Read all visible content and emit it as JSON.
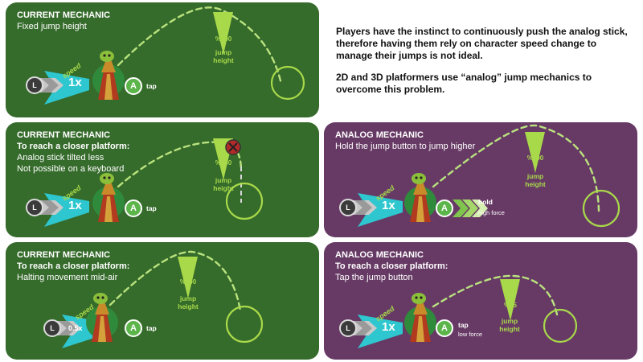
{
  "colors": {
    "green": "#356b2b",
    "purple": "#673a65",
    "lime": "#a8d94a",
    "dash": "#b9e27e",
    "speed_arrow": "#2ec7cf",
    "button_green": "#5bb54a",
    "stick": "#3b3b3b"
  },
  "icons": {
    "character": "wizard-character-icon",
    "stick": "analog-stick-icon",
    "button": "a-button-icon",
    "speed": "speed-arrow-icon",
    "blocked": "blocked-x-icon"
  },
  "side_text": {
    "p1": "Players have the instinct to continuously push the analog stick, therefore having them rely on character speed change to manage their jumps is not ideal.",
    "p2": "2D and 3D platformers use “analog” jump mechanics to overcome this problem."
  },
  "panels": [
    {
      "title": "CURRENT MECHANIC",
      "subtitle": "",
      "lines": [
        "Fixed jump height"
      ],
      "percent": "%100",
      "jump_label": "jump",
      "height_label": "height",
      "speed_label": "speed",
      "multiplier": "1x",
      "stick_key": "L",
      "button_key": "A",
      "action": "tap",
      "action_sub": ""
    },
    {
      "title": "CURRENT MECHANIC",
      "subtitle": "To reach a closer platform:",
      "lines": [
        "Analog stick tilted less",
        "Not possible on a keyboard"
      ],
      "percent": "%100",
      "jump_label": "jump",
      "height_label": "height",
      "speed_label": "speed",
      "multiplier": "1x",
      "stick_key": "L",
      "button_key": "A",
      "action": "tap",
      "action_sub": ""
    },
    {
      "title": "ANALOG MECHANIC",
      "subtitle": "",
      "lines": [
        "Hold the jump button to jump higher"
      ],
      "percent": "%100",
      "jump_label": "jump",
      "height_label": "height",
      "speed_label": "speed",
      "multiplier": "1x",
      "stick_key": "L",
      "button_key": "A",
      "action": "hold",
      "action_sub": "high force"
    },
    {
      "title": "CURRENT MECHANIC",
      "subtitle": "To reach a closer platform:",
      "lines": [
        "Halting movement mid-air"
      ],
      "percent": "%100",
      "jump_label": "jump",
      "height_label": "height",
      "speed_label": "speed",
      "multiplier": "0.5x",
      "stick_key": "L",
      "button_key": "A",
      "action": "tap",
      "action_sub": ""
    },
    {
      "title": "ANALOG MECHANIC",
      "subtitle": "To reach a closer platform:",
      "lines": [
        "Tap the jump button"
      ],
      "percent": "%65",
      "jump_label": "jump",
      "height_label": "height",
      "speed_label": "speed",
      "multiplier": "1x",
      "stick_key": "L",
      "button_key": "A",
      "action": "tap",
      "action_sub": "low force"
    }
  ]
}
